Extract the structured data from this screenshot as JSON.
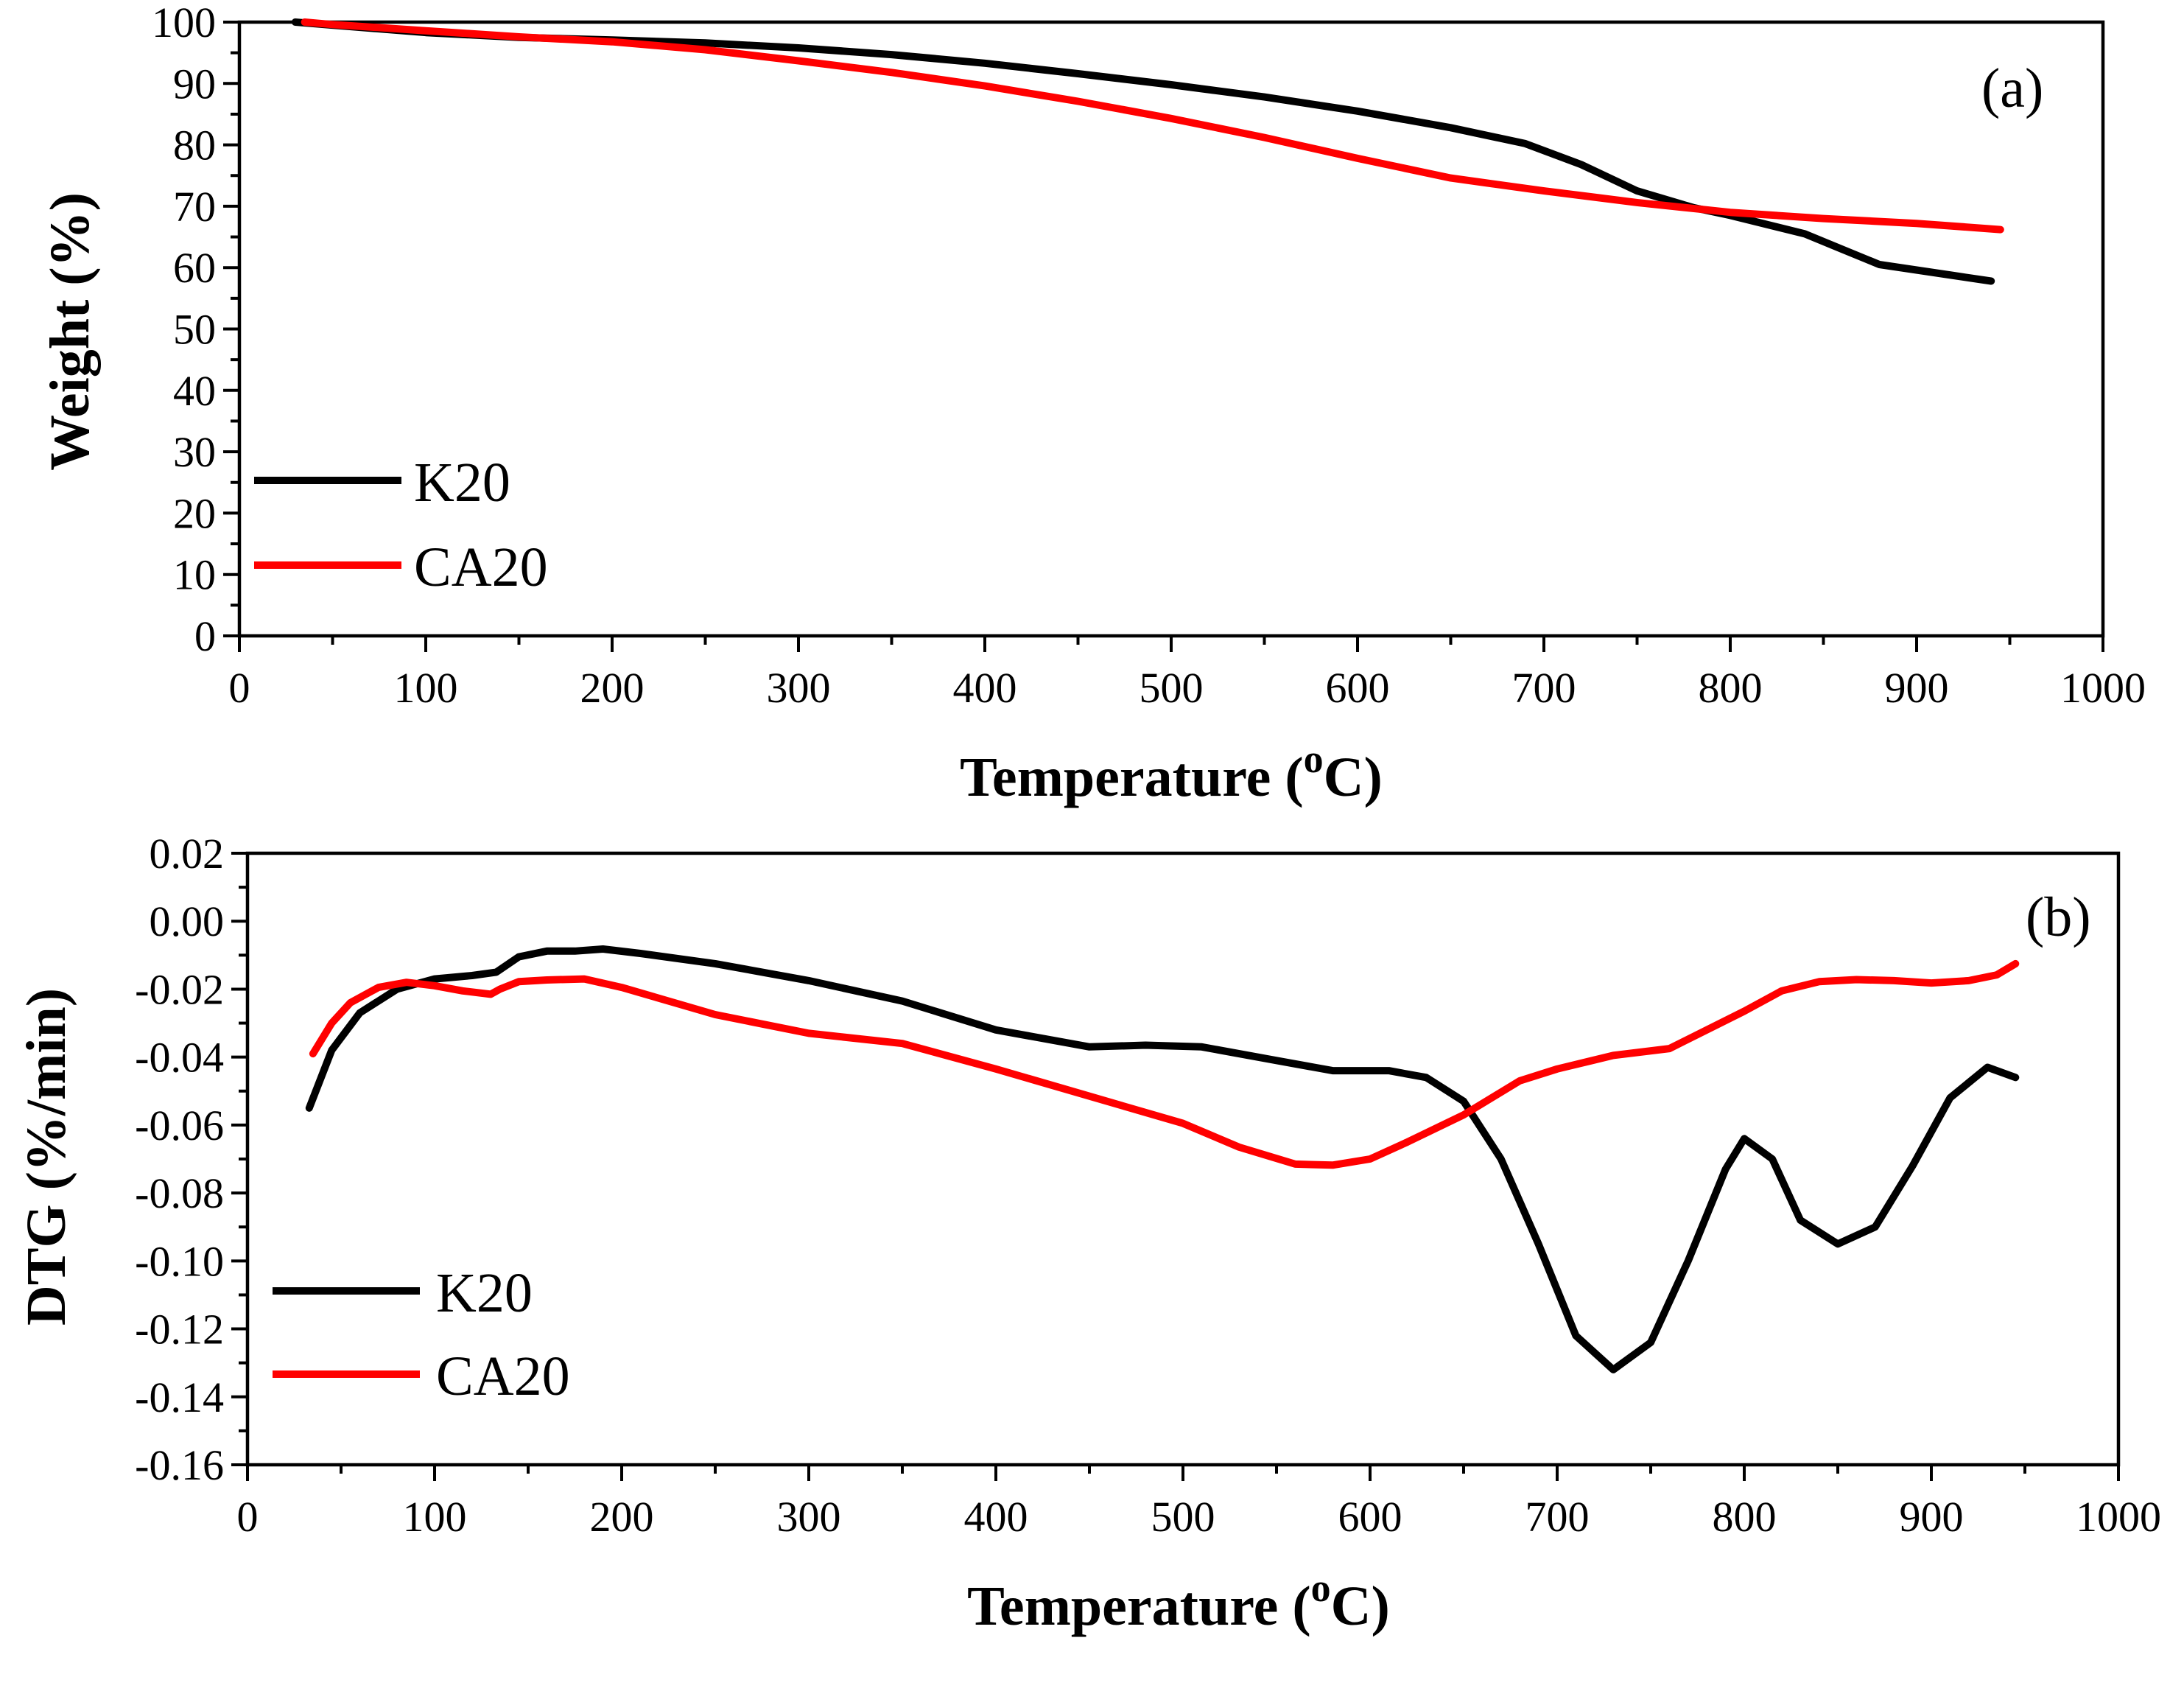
{
  "colors": {
    "K20": "#000000",
    "CA20": "#ff0000"
  },
  "chart_data": [
    {
      "type": "line",
      "panel_label": "(a)",
      "xlabel": "Temperature (",
      "xlabel_sup": "o",
      "xlabel_unit": "C)",
      "ylabel": "Weight (%)",
      "xlim": [
        0,
        1000
      ],
      "ylim": [
        0,
        100
      ],
      "xticks": [
        0,
        100,
        200,
        300,
        400,
        500,
        600,
        700,
        800,
        900,
        1000
      ],
      "xtick_labels": [
        "0",
        "100",
        "200",
        "300",
        "400",
        "500",
        "600",
        "700",
        "800",
        "900",
        "1000"
      ],
      "yticks": [
        0,
        10,
        20,
        30,
        40,
        50,
        60,
        70,
        80,
        90,
        100
      ],
      "ytick_labels": [
        "0",
        "10",
        "20",
        "30",
        "40",
        "50",
        "60",
        "70",
        "80",
        "90",
        "100"
      ],
      "legend_position": "bottom-left",
      "series": [
        {
          "name": "K20",
          "x": [
            30,
            50,
            100,
            150,
            200,
            250,
            300,
            350,
            400,
            450,
            500,
            550,
            600,
            650,
            690,
            720,
            750,
            780,
            800,
            840,
            860,
            880,
            900,
            920,
            940
          ],
          "y": [
            100,
            99.5,
            98.3,
            97.5,
            97.1,
            96.6,
            95.8,
            94.7,
            93.3,
            91.6,
            89.8,
            87.8,
            85.5,
            82.8,
            80.2,
            76.8,
            72.5,
            69.8,
            68.5,
            65.5,
            63.0,
            60.5,
            59.6,
            58.7,
            57.8
          ]
        },
        {
          "name": "CA20",
          "x": [
            35,
            50,
            100,
            150,
            200,
            250,
            300,
            350,
            400,
            450,
            500,
            550,
            600,
            650,
            700,
            750,
            800,
            850,
            900,
            945
          ],
          "y": [
            100,
            99.6,
            98.6,
            97.6,
            96.8,
            95.5,
            93.7,
            91.8,
            89.6,
            87.1,
            84.3,
            81.2,
            77.8,
            74.6,
            72.5,
            70.6,
            69.0,
            68.0,
            67.2,
            66.2
          ]
        }
      ]
    },
    {
      "type": "line",
      "panel_label": "(b)",
      "xlabel": "Temperature (",
      "xlabel_sup": "o",
      "xlabel_unit": "C)",
      "ylabel": "DTG (%/min)",
      "xlim": [
        0,
        1000
      ],
      "ylim": [
        -0.16,
        0.02
      ],
      "xticks": [
        0,
        100,
        200,
        300,
        400,
        500,
        600,
        700,
        800,
        900,
        1000
      ],
      "xtick_labels": [
        "0",
        "100",
        "200",
        "300",
        "400",
        "500",
        "600",
        "700",
        "800",
        "900",
        "1000"
      ],
      "yticks": [
        0.02,
        0.0,
        -0.02,
        -0.04,
        -0.06,
        -0.08,
        -0.1,
        -0.12,
        -0.14,
        -0.16
      ],
      "ytick_labels": [
        "0.02",
        "0.00",
        "-0.02",
        "-0.04",
        "-0.06",
        "-0.08",
        "-0.10",
        "-0.12",
        "-0.14",
        "-0.16"
      ],
      "legend_position": "bottom-left",
      "series": [
        {
          "name": "K20",
          "x": [
            33,
            45,
            60,
            80,
            100,
            120,
            133,
            145,
            160,
            175,
            190,
            210,
            250,
            300,
            350,
            400,
            450,
            480,
            510,
            550,
            580,
            610,
            630,
            650,
            670,
            690,
            710,
            730,
            750,
            770,
            790,
            800,
            815,
            830,
            850,
            870,
            890,
            910,
            930,
            945
          ],
          "y": [
            -0.055,
            -0.038,
            -0.027,
            -0.02,
            -0.017,
            -0.016,
            -0.015,
            -0.0105,
            -0.0088,
            -0.0088,
            -0.0082,
            -0.0095,
            -0.0125,
            -0.0175,
            -0.0235,
            -0.032,
            -0.037,
            -0.0365,
            -0.037,
            -0.041,
            -0.044,
            -0.044,
            -0.046,
            -0.053,
            -0.07,
            -0.095,
            -0.122,
            -0.132,
            -0.124,
            -0.1,
            -0.073,
            -0.064,
            -0.07,
            -0.088,
            -0.095,
            -0.09,
            -0.072,
            -0.052,
            -0.043,
            -0.046
          ]
        },
        {
          "name": "CA20",
          "x": [
            35,
            45,
            55,
            70,
            85,
            100,
            115,
            130,
            135,
            145,
            160,
            180,
            200,
            250,
            300,
            350,
            400,
            450,
            500,
            530,
            560,
            580,
            600,
            620,
            650,
            680,
            700,
            730,
            760,
            800,
            820,
            840,
            860,
            880,
            900,
            920,
            935,
            945
          ],
          "y": [
            -0.039,
            -0.03,
            -0.024,
            -0.0195,
            -0.018,
            -0.019,
            -0.0205,
            -0.0215,
            -0.02,
            -0.0178,
            -0.0173,
            -0.017,
            -0.0195,
            -0.0275,
            -0.033,
            -0.036,
            -0.0435,
            -0.0515,
            -0.0595,
            -0.0665,
            -0.0715,
            -0.0718,
            -0.07,
            -0.065,
            -0.057,
            -0.047,
            -0.0435,
            -0.0395,
            -0.0375,
            -0.0265,
            -0.0205,
            -0.0178,
            -0.0172,
            -0.0175,
            -0.0182,
            -0.0175,
            -0.0158,
            -0.0125
          ]
        }
      ]
    }
  ]
}
